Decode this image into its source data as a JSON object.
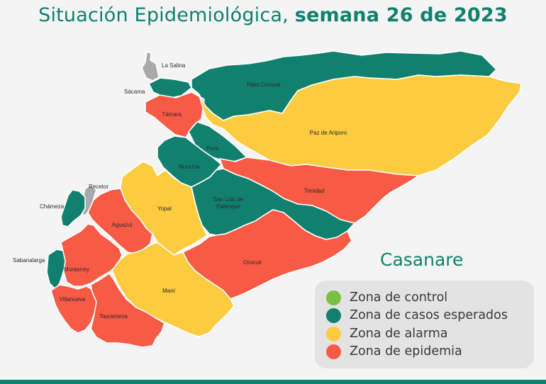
{
  "title": {
    "normal": "Situación Epidemiológica, ",
    "bold": "semana 26 de 2023"
  },
  "department": "Casanare",
  "colors": {
    "control": "#7ac143",
    "esperados": "#12806e",
    "alarma": "#fccb40",
    "epidemia": "#f75a45",
    "sin_dato": "#a9a9a9",
    "title": "#12806e"
  },
  "legend": [
    {
      "label": "Zona de control",
      "status": "control"
    },
    {
      "label": "Zona de casos esperados",
      "status": "esperados"
    },
    {
      "label": "Zona de alarma",
      "status": "alarma"
    },
    {
      "label": "Zona de epidemia",
      "status": "epidemia"
    }
  ],
  "municipalities": [
    {
      "name": "La Salina",
      "status": "sin_dato"
    },
    {
      "name": "Sácama",
      "status": "esperados"
    },
    {
      "name": "Hato Corozal",
      "status": "esperados"
    },
    {
      "name": "Támara",
      "status": "epidemia"
    },
    {
      "name": "Paz de Ariporo",
      "status": "alarma"
    },
    {
      "name": "Pore",
      "status": "esperados"
    },
    {
      "name": "Nunchía",
      "status": "esperados"
    },
    {
      "name": "Trinidad",
      "status": "epidemia"
    },
    {
      "name": "Recetor",
      "status": "sin_dato"
    },
    {
      "name": "San Luis de Palenque",
      "status": "esperados"
    },
    {
      "name": "Chámeza",
      "status": "esperados"
    },
    {
      "name": "Yopal",
      "status": "alarma"
    },
    {
      "name": "Aguazul",
      "status": "epidemia"
    },
    {
      "name": "Sabanalarga",
      "status": "esperados"
    },
    {
      "name": "Monterrey",
      "status": "epidemia"
    },
    {
      "name": "Orocué",
      "status": "epidemia"
    },
    {
      "name": "Maní",
      "status": "alarma"
    },
    {
      "name": "Villanueva",
      "status": "epidemia"
    },
    {
      "name": "Tauramena",
      "status": "epidemia"
    }
  ]
}
